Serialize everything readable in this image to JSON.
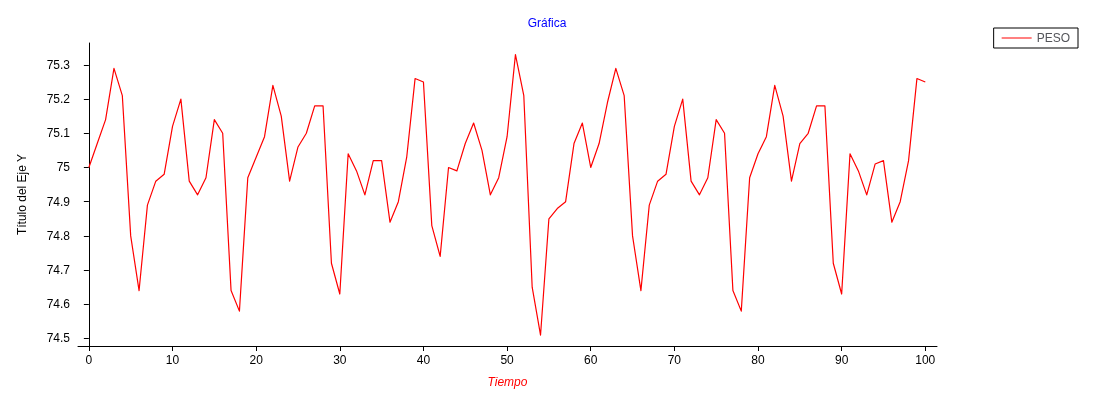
{
  "chart_data": {
    "type": "line",
    "title": "Gráfica",
    "xlabel": "Tiempo",
    "ylabel": "Título del Eje Y",
    "x": [
      0,
      1,
      2,
      3,
      4,
      5,
      6,
      7,
      8,
      9,
      10,
      11,
      12,
      13,
      14,
      15,
      16,
      17,
      18,
      19,
      20,
      21,
      22,
      23,
      24,
      25,
      26,
      27,
      28,
      29,
      30,
      31,
      32,
      33,
      34,
      35,
      36,
      37,
      38,
      39,
      40,
      41,
      42,
      43,
      44,
      45,
      46,
      47,
      48,
      49,
      50,
      51,
      52,
      53,
      54,
      55,
      56,
      57,
      58,
      59,
      60,
      61,
      62,
      63,
      64,
      65,
      66,
      67,
      68,
      69,
      70,
      71,
      72,
      73,
      74,
      75,
      76,
      77,
      78,
      79,
      80,
      81,
      82,
      83,
      84,
      85,
      86,
      87,
      88,
      89,
      90,
      91,
      92,
      93,
      94,
      95,
      96,
      97,
      98,
      99,
      100
    ],
    "series": [
      {
        "name": "PESO",
        "color": "#ff0000",
        "values": [
          75.0,
          75.07,
          75.14,
          75.29,
          75.21,
          74.8,
          74.64,
          74.89,
          74.96,
          74.98,
          75.12,
          75.2,
          74.96,
          74.92,
          74.97,
          75.14,
          75.1,
          74.64,
          74.58,
          74.97,
          75.03,
          75.09,
          75.24,
          75.15,
          74.96,
          75.06,
          75.1,
          75.18,
          75.18,
          74.72,
          74.63,
          75.04,
          74.99,
          74.92,
          75.02,
          75.02,
          74.84,
          74.9,
          75.03,
          75.26,
          75.25,
          74.83,
          74.74,
          75.0,
          74.99,
          75.07,
          75.13,
          75.05,
          74.92,
          74.97,
          75.09,
          75.33,
          75.21,
          74.65,
          74.51,
          74.85,
          74.88,
          74.9,
          75.07,
          75.13,
          75.0,
          75.07,
          75.19,
          75.29,
          75.21,
          74.8,
          74.64,
          74.89,
          74.96,
          74.98,
          75.12,
          75.2,
          74.96,
          74.92,
          74.97,
          75.14,
          75.1,
          74.64,
          74.58,
          74.97,
          75.04,
          75.09,
          75.24,
          75.15,
          74.96,
          75.07,
          75.1,
          75.18,
          75.18,
          74.72,
          74.63,
          75.04,
          74.99,
          74.92,
          75.01,
          75.02,
          74.84,
          74.9,
          75.02,
          75.26,
          75.25
        ]
      }
    ],
    "xlim": [
      -1.3,
      101.4
    ],
    "xticks": [
      0,
      10,
      20,
      30,
      40,
      50,
      60,
      70,
      80,
      90,
      100
    ],
    "ylim": [
      74.478,
      75.364
    ],
    "yticks": [
      74.5,
      74.6,
      74.7,
      74.8,
      74.9,
      75,
      75.1,
      75.2,
      75.3
    ],
    "grid": false,
    "legend": "top right",
    "marker": "none",
    "line_style": "solid"
  }
}
